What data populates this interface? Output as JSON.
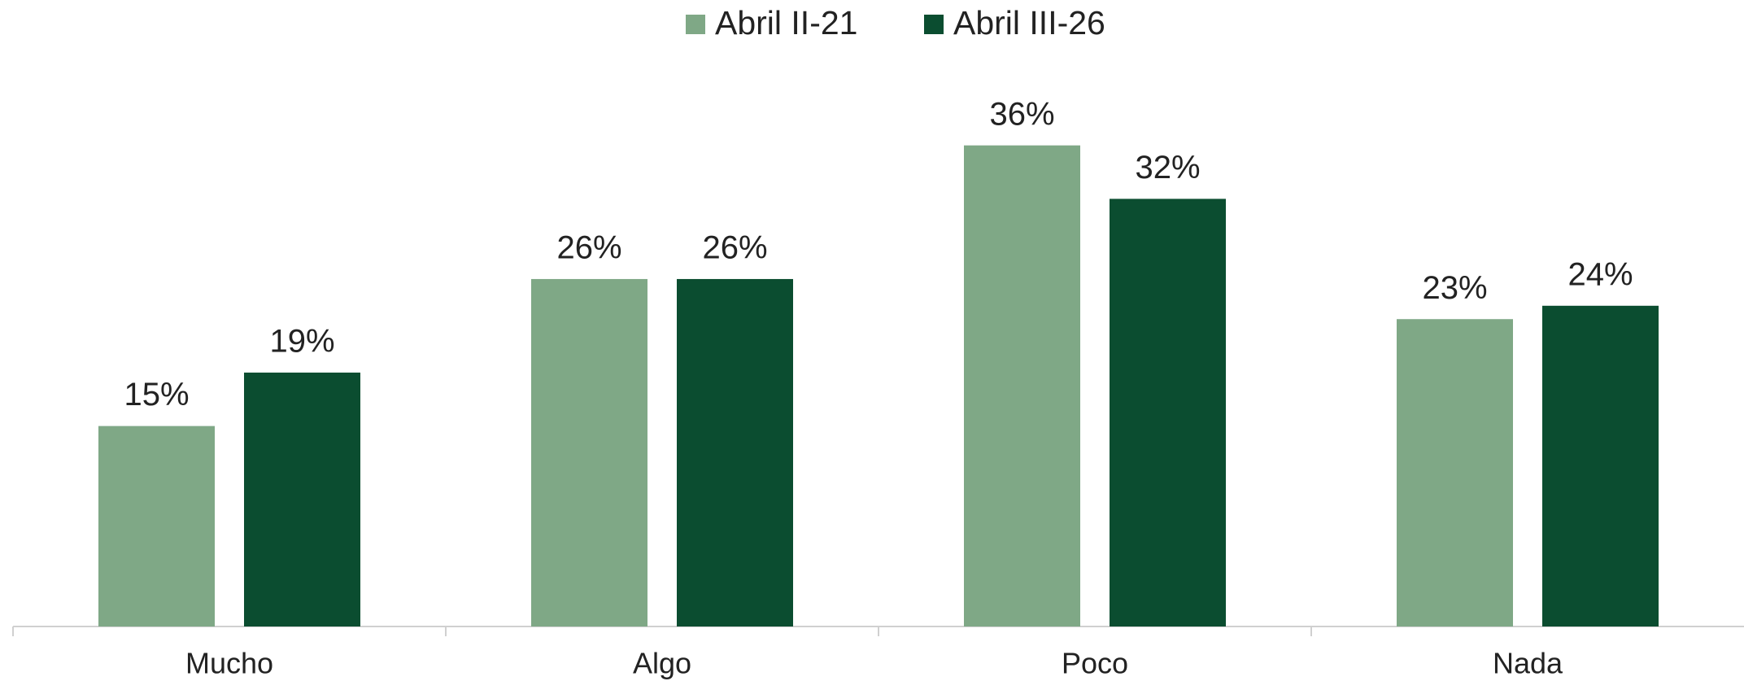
{
  "chart_data": {
    "type": "bar",
    "categories": [
      "Mucho",
      "Algo",
      "Poco",
      "Nada"
    ],
    "series": [
      {
        "name": "Abril II-21",
        "color": "#7fa886",
        "values": [
          15,
          26,
          36,
          23
        ],
        "value_labels": [
          "15%",
          "26%",
          "36%",
          "23%"
        ]
      },
      {
        "name": "Abril III-26",
        "color": "#0b4d30",
        "values": [
          19,
          26,
          32,
          24
        ],
        "value_labels": [
          "19%",
          "26%",
          "32%",
          "24%"
        ]
      }
    ],
    "ylim": [
      0,
      40
    ],
    "legend": "top",
    "grid": false
  }
}
